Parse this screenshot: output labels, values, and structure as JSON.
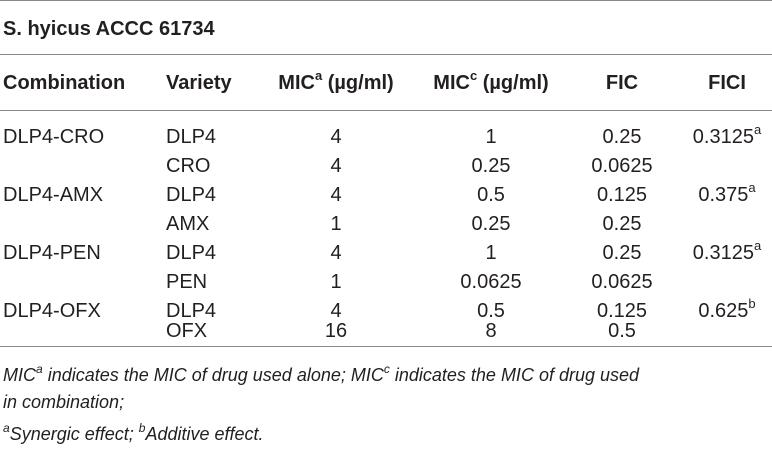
{
  "strain_title": "S. hyicus ACCC 61734",
  "headers": {
    "combination": "Combination",
    "variety": "Variety",
    "mic_a_base": "MIC",
    "mic_a_sup": "a",
    "mic_a_unit": " (µg/ml)",
    "mic_c_base": "MIC",
    "mic_c_sup": "c",
    "mic_c_unit": " (µg/ml)",
    "fic": "FIC",
    "fici": "FICI"
  },
  "rows": [
    {
      "combination": "DLP4-CRO",
      "variety": "DLP4",
      "mic_a": "4",
      "mic_c": "1",
      "fic": "0.25",
      "fici": "0.3125",
      "fici_sup": "a"
    },
    {
      "combination": "",
      "variety": "CRO",
      "mic_a": "4",
      "mic_c": "0.25",
      "fic": "0.0625",
      "fici": "",
      "fici_sup": ""
    },
    {
      "combination": "DLP4-AMX",
      "variety": "DLP4",
      "mic_a": "4",
      "mic_c": "0.5",
      "fic": "0.125",
      "fici": "0.375",
      "fici_sup": "a"
    },
    {
      "combination": "",
      "variety": "AMX",
      "mic_a": "1",
      "mic_c": "0.25",
      "fic": "0.25",
      "fici": "",
      "fici_sup": ""
    },
    {
      "combination": "DLP4-PEN",
      "variety": "DLP4",
      "mic_a": "4",
      "mic_c": "1",
      "fic": "0.25",
      "fici": "0.3125",
      "fici_sup": "a"
    },
    {
      "combination": "",
      "variety": "PEN",
      "mic_a": "1",
      "mic_c": "0.0625",
      "fic": "0.0625",
      "fici": "",
      "fici_sup": ""
    },
    {
      "combination": "DLP4-OFX",
      "variety": "DLP4",
      "mic_a": "4",
      "mic_c": "0.5",
      "fic": "0.125",
      "fici": "0.625",
      "fici_sup": "b"
    },
    {
      "combination": "",
      "variety": "OFX",
      "mic_a": "16",
      "mic_c": "8",
      "fic": "0.5",
      "fici": "",
      "fici_sup": ""
    }
  ],
  "footnotes": {
    "line1_a": "MIC",
    "line1_a_sup": "a",
    "line1_b": " indicates the MIC of drug used alone; MIC",
    "line1_b_sup": "c",
    "line1_c": " indicates the MIC of drug used",
    "line2": "in combination;",
    "line3_sup_a": "a",
    "line3_a": "Synergic effect; ",
    "line3_sup_b": "b",
    "line3_b": "Additive effect."
  }
}
